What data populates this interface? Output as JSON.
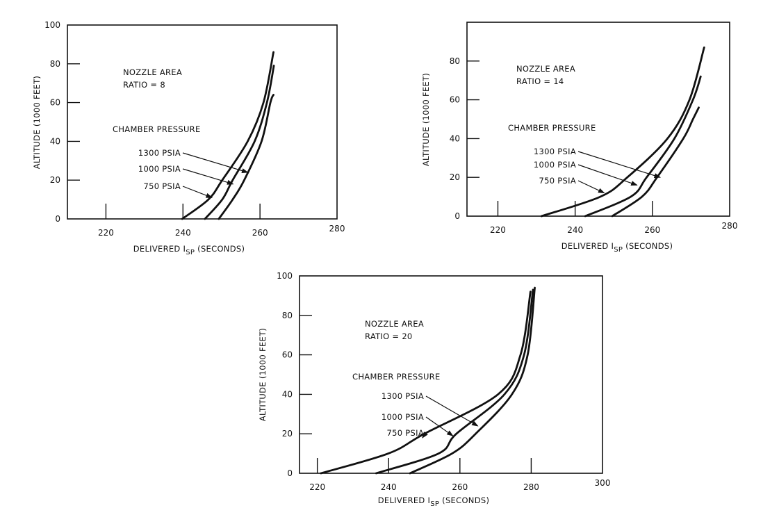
{
  "chart_data": [
    {
      "type": "line",
      "title": [
        "NOZZLE AREA",
        "RATIO = 8"
      ],
      "legend_title": "CHAMBER PRESSURE",
      "xlabel": {
        "main": "DELIVERED I",
        "sub": "SP",
        "tail": " (SECONDS)"
      },
      "ylabel": "ALTITUDE (1000 FEET)",
      "xlim": [
        210,
        280
      ],
      "ylim": [
        0,
        100
      ],
      "xticks": [
        220,
        240,
        260,
        280
      ],
      "xtick_marks": [
        220,
        240,
        260
      ],
      "yticks": [
        0,
        20,
        40,
        60,
        80,
        100
      ],
      "ytick_marks": [
        20,
        40,
        60,
        80
      ],
      "grid": false,
      "series": [
        {
          "name": "750 PSIA",
          "points": [
            [
              239.8,
              0
            ],
            [
              246.6,
              10
            ],
            [
              250.2,
              20
            ],
            [
              256.8,
              40
            ],
            [
              260.9,
              60
            ],
            [
              263.5,
              86
            ]
          ],
          "arrow_to": [
            247.5,
            11
          ]
        },
        {
          "name": "1000 PSIA",
          "points": [
            [
              245.7,
              0
            ],
            [
              250.2,
              10
            ],
            [
              252.9,
              20
            ],
            [
              258.6,
              40
            ],
            [
              261.8,
              60
            ],
            [
              263.6,
              79
            ]
          ],
          "arrow_to": [
            253,
            18
          ]
        },
        {
          "name": "1300 PSIA",
          "points": [
            [
              249.3,
              0
            ],
            [
              252.9,
              10
            ],
            [
              255.9,
              20
            ],
            [
              260.4,
              40
            ],
            [
              262.7,
              60
            ],
            [
              263.5,
              64
            ]
          ],
          "arrow_to": [
            256.8,
            24
          ]
        }
      ]
    },
    {
      "type": "line",
      "title": [
        "NOZZLE AREA",
        "RATIO = 14"
      ],
      "legend_title": "CHAMBER PRESSURE",
      "xlabel": {
        "main": "DELIVERED I",
        "sub": "SP",
        "tail": " (SECONDS)"
      },
      "ylabel": "ALTITUDE (1000 FEET)",
      "xlim": [
        212,
        280
      ],
      "ylim": [
        0,
        100
      ],
      "xticks": [
        220,
        240,
        260,
        280
      ],
      "xtick_marks": [
        220,
        240,
        260
      ],
      "yticks": [
        0,
        20,
        40,
        60,
        80
      ],
      "ytick_marks": [
        20,
        40,
        60,
        80
      ],
      "grid": false,
      "series": [
        {
          "name": "750 PSIA",
          "points": [
            [
              231.3,
              0
            ],
            [
              246.5,
              10
            ],
            [
              253.5,
              20
            ],
            [
              263.9,
              40
            ],
            [
              269.6,
              60
            ],
            [
              273.4,
              87
            ]
          ],
          "arrow_to": [
            247.5,
            12
          ]
        },
        {
          "name": "1000 PSIA",
          "points": [
            [
              242.6,
              0
            ],
            [
              254.4,
              10
            ],
            [
              258.5,
              20
            ],
            [
              265.7,
              40
            ],
            [
              270.5,
              60
            ],
            [
              272.5,
              72
            ]
          ],
          "arrow_to": [
            256,
            16
          ]
        },
        {
          "name": "1300 PSIA",
          "points": [
            [
              249.6,
              0
            ],
            [
              257.3,
              10
            ],
            [
              261.2,
              20
            ],
            [
              268,
              40
            ],
            [
              270.5,
              50
            ],
            [
              272,
              56
            ]
          ],
          "arrow_to": [
            262,
            20
          ]
        }
      ]
    },
    {
      "type": "line",
      "title": [
        "NOZZLE AREA",
        "RATIO = 20"
      ],
      "legend_title": "CHAMBER PRESSURE",
      "xlabel": {
        "main": "DELIVERED I",
        "sub": "SP",
        "tail": " (SECONDS)"
      },
      "ylabel": "ALTITUDE (1000 FEET)",
      "xlim": [
        215,
        300
      ],
      "ylim": [
        0,
        100
      ],
      "xticks": [
        220,
        240,
        260,
        280,
        300
      ],
      "xtick_marks": [
        220,
        240,
        260,
        280
      ],
      "yticks": [
        0,
        20,
        40,
        60,
        80,
        100
      ],
      "ytick_marks": [
        20,
        40,
        60,
        80
      ],
      "grid": false,
      "series": [
        {
          "name": "750 PSIA",
          "points": [
            [
              221,
              0
            ],
            [
              239.9,
              10
            ],
            [
              250,
              20
            ],
            [
              270.7,
              40
            ],
            [
              277,
              60
            ],
            [
              279.8,
              92
            ]
          ],
          "arrow_to": [
            249.5,
            18
          ]
        },
        {
          "name": "1000 PSIA",
          "points": [
            [
              236.5,
              0
            ],
            [
              254,
              10
            ],
            [
              259,
              20
            ],
            [
              272.5,
              40
            ],
            [
              278,
              60
            ],
            [
              280.5,
              93
            ]
          ],
          "arrow_to": [
            258,
            19
          ]
        },
        {
          "name": "1300 PSIA",
          "points": [
            [
              246,
              0
            ],
            [
              257.8,
              10
            ],
            [
              264.4,
              20
            ],
            [
              274.6,
              40
            ],
            [
              279,
              60
            ],
            [
              281,
              94
            ]
          ],
          "arrow_to": [
            265,
            24
          ]
        }
      ]
    }
  ]
}
